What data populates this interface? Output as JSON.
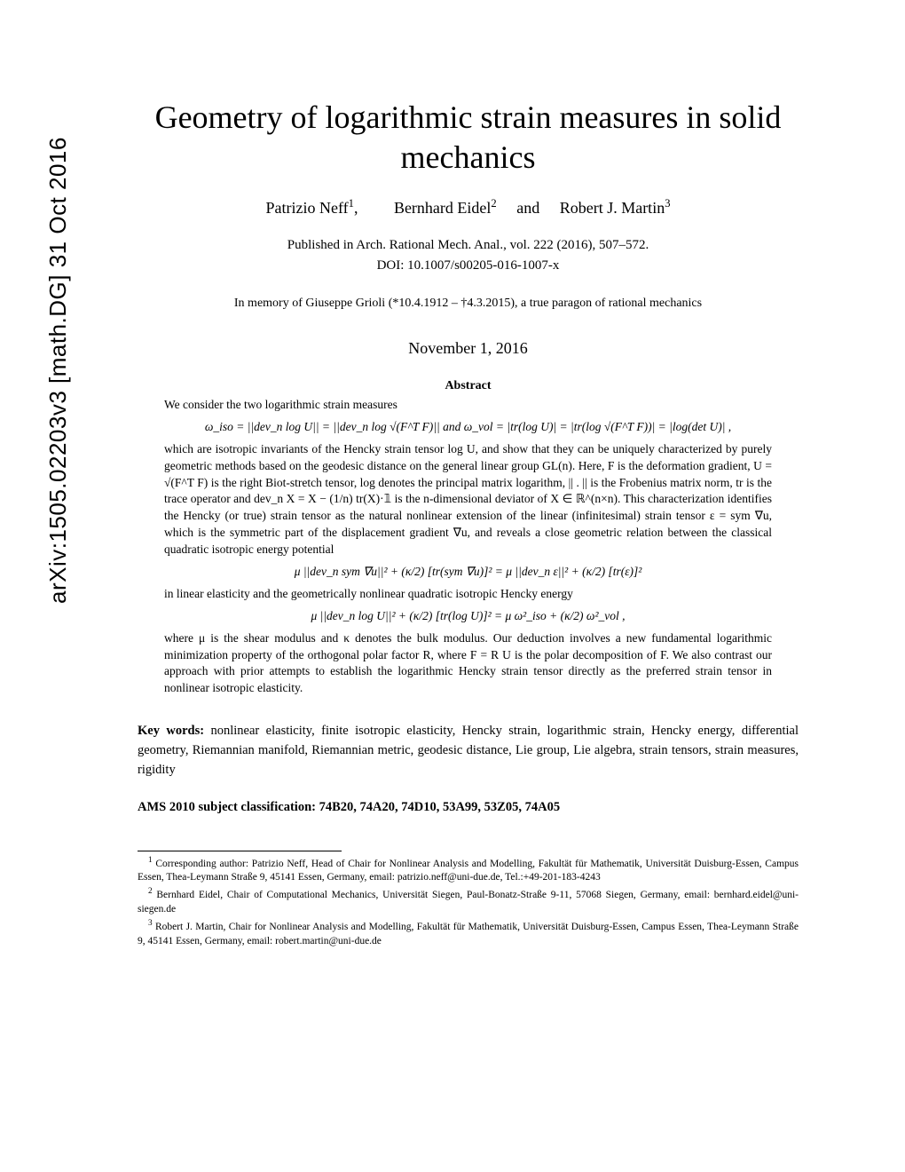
{
  "arxiv_stamp": "arXiv:1505.02203v3  [math.DG]  31 Oct 2016",
  "title": "Geometry of logarithmic strain measures in solid mechanics",
  "authors": {
    "a1": "Patrizio Neff",
    "a1_mark": "1",
    "a2": "Bernhard Eidel",
    "a2_mark": "2",
    "and": "and",
    "a3": "Robert J. Martin",
    "a3_mark": "3"
  },
  "publication": {
    "line1": "Published in Arch. Rational Mech. Anal., vol. 222 (2016), 507–572.",
    "line2": "DOI: 10.1007/s00205-016-1007-x"
  },
  "dedication": "In memory of Giuseppe Grioli (*10.4.1912 – †4.3.2015), a true paragon of rational mechanics",
  "date": "November 1, 2016",
  "abstract_heading": "Abstract",
  "abstract": {
    "p1": "We consider the two logarithmic strain measures",
    "eq1": "ω_iso = ||dev_n log U|| = ||dev_n log √(F^T F)||    and    ω_vol = |tr(log U)| = |tr(log √(F^T F))| = |log(det U)| ,",
    "p2": "which are isotropic invariants of the Hencky strain tensor log U, and show that they can be uniquely characterized by purely geometric methods based on the geodesic distance on the general linear group GL(n). Here, F is the deformation gradient, U = √(F^T F) is the right Biot-stretch tensor, log denotes the principal matrix logarithm, || . || is the Frobenius matrix norm, tr is the trace operator and dev_n X = X − (1/n) tr(X)·𝟙 is the n-dimensional deviator of X ∈ ℝ^(n×n). This characterization identifies the Hencky (or true) strain tensor as the natural nonlinear extension of the linear (infinitesimal) strain tensor ε = sym ∇u, which is the symmetric part of the displacement gradient ∇u, and reveals a close geometric relation between the classical quadratic isotropic energy potential",
    "eq2": "μ ||dev_n sym ∇u||² + (κ/2) [tr(sym ∇u)]² = μ ||dev_n ε||² + (κ/2) [tr(ε)]²",
    "p3": "in linear elasticity and the geometrically nonlinear quadratic isotropic Hencky energy",
    "eq3": "μ ||dev_n log U||² + (κ/2) [tr(log U)]² = μ ω²_iso + (κ/2) ω²_vol ,",
    "p4": "where μ is the shear modulus and κ denotes the bulk modulus. Our deduction involves a new fundamental logarithmic minimization property of the orthogonal polar factor R, where F = R U is the polar decomposition of F. We also contrast our approach with prior attempts to establish the logarithmic Hencky strain tensor directly as the preferred strain tensor in nonlinear isotropic elasticity."
  },
  "keywords_label": "Key words:",
  "keywords": "nonlinear elasticity, finite isotropic elasticity, Hencky strain, logarithmic strain, Hencky energy, differential geometry, Riemannian manifold, Riemannian metric, geodesic distance, Lie group, Lie algebra, strain tensors, strain measures, rigidity",
  "ams": "AMS 2010 subject classification: 74B20, 74A20, 74D10, 53A99, 53Z05, 74A05",
  "footnotes": {
    "f1": "Corresponding author: Patrizio Neff, Head of Chair for Nonlinear Analysis and Modelling, Fakultät für Mathematik, Universität Duisburg-Essen, Campus Essen, Thea-Leymann Straße 9, 45141 Essen, Germany, email: patrizio.neff@uni-due.de, Tel.:+49-201-183-4243",
    "f2": "Bernhard Eidel, Chair of Computational Mechanics, Universität Siegen, Paul-Bonatz-Straße 9-11, 57068 Siegen, Germany, email: bernhard.eidel@uni-siegen.de",
    "f3": "Robert J. Martin, Chair for Nonlinear Analysis and Modelling, Fakultät für Mathematik, Universität Duisburg-Essen, Campus Essen, Thea-Leymann Straße 9, 45141 Essen, Germany, email: robert.martin@uni-due.de"
  }
}
